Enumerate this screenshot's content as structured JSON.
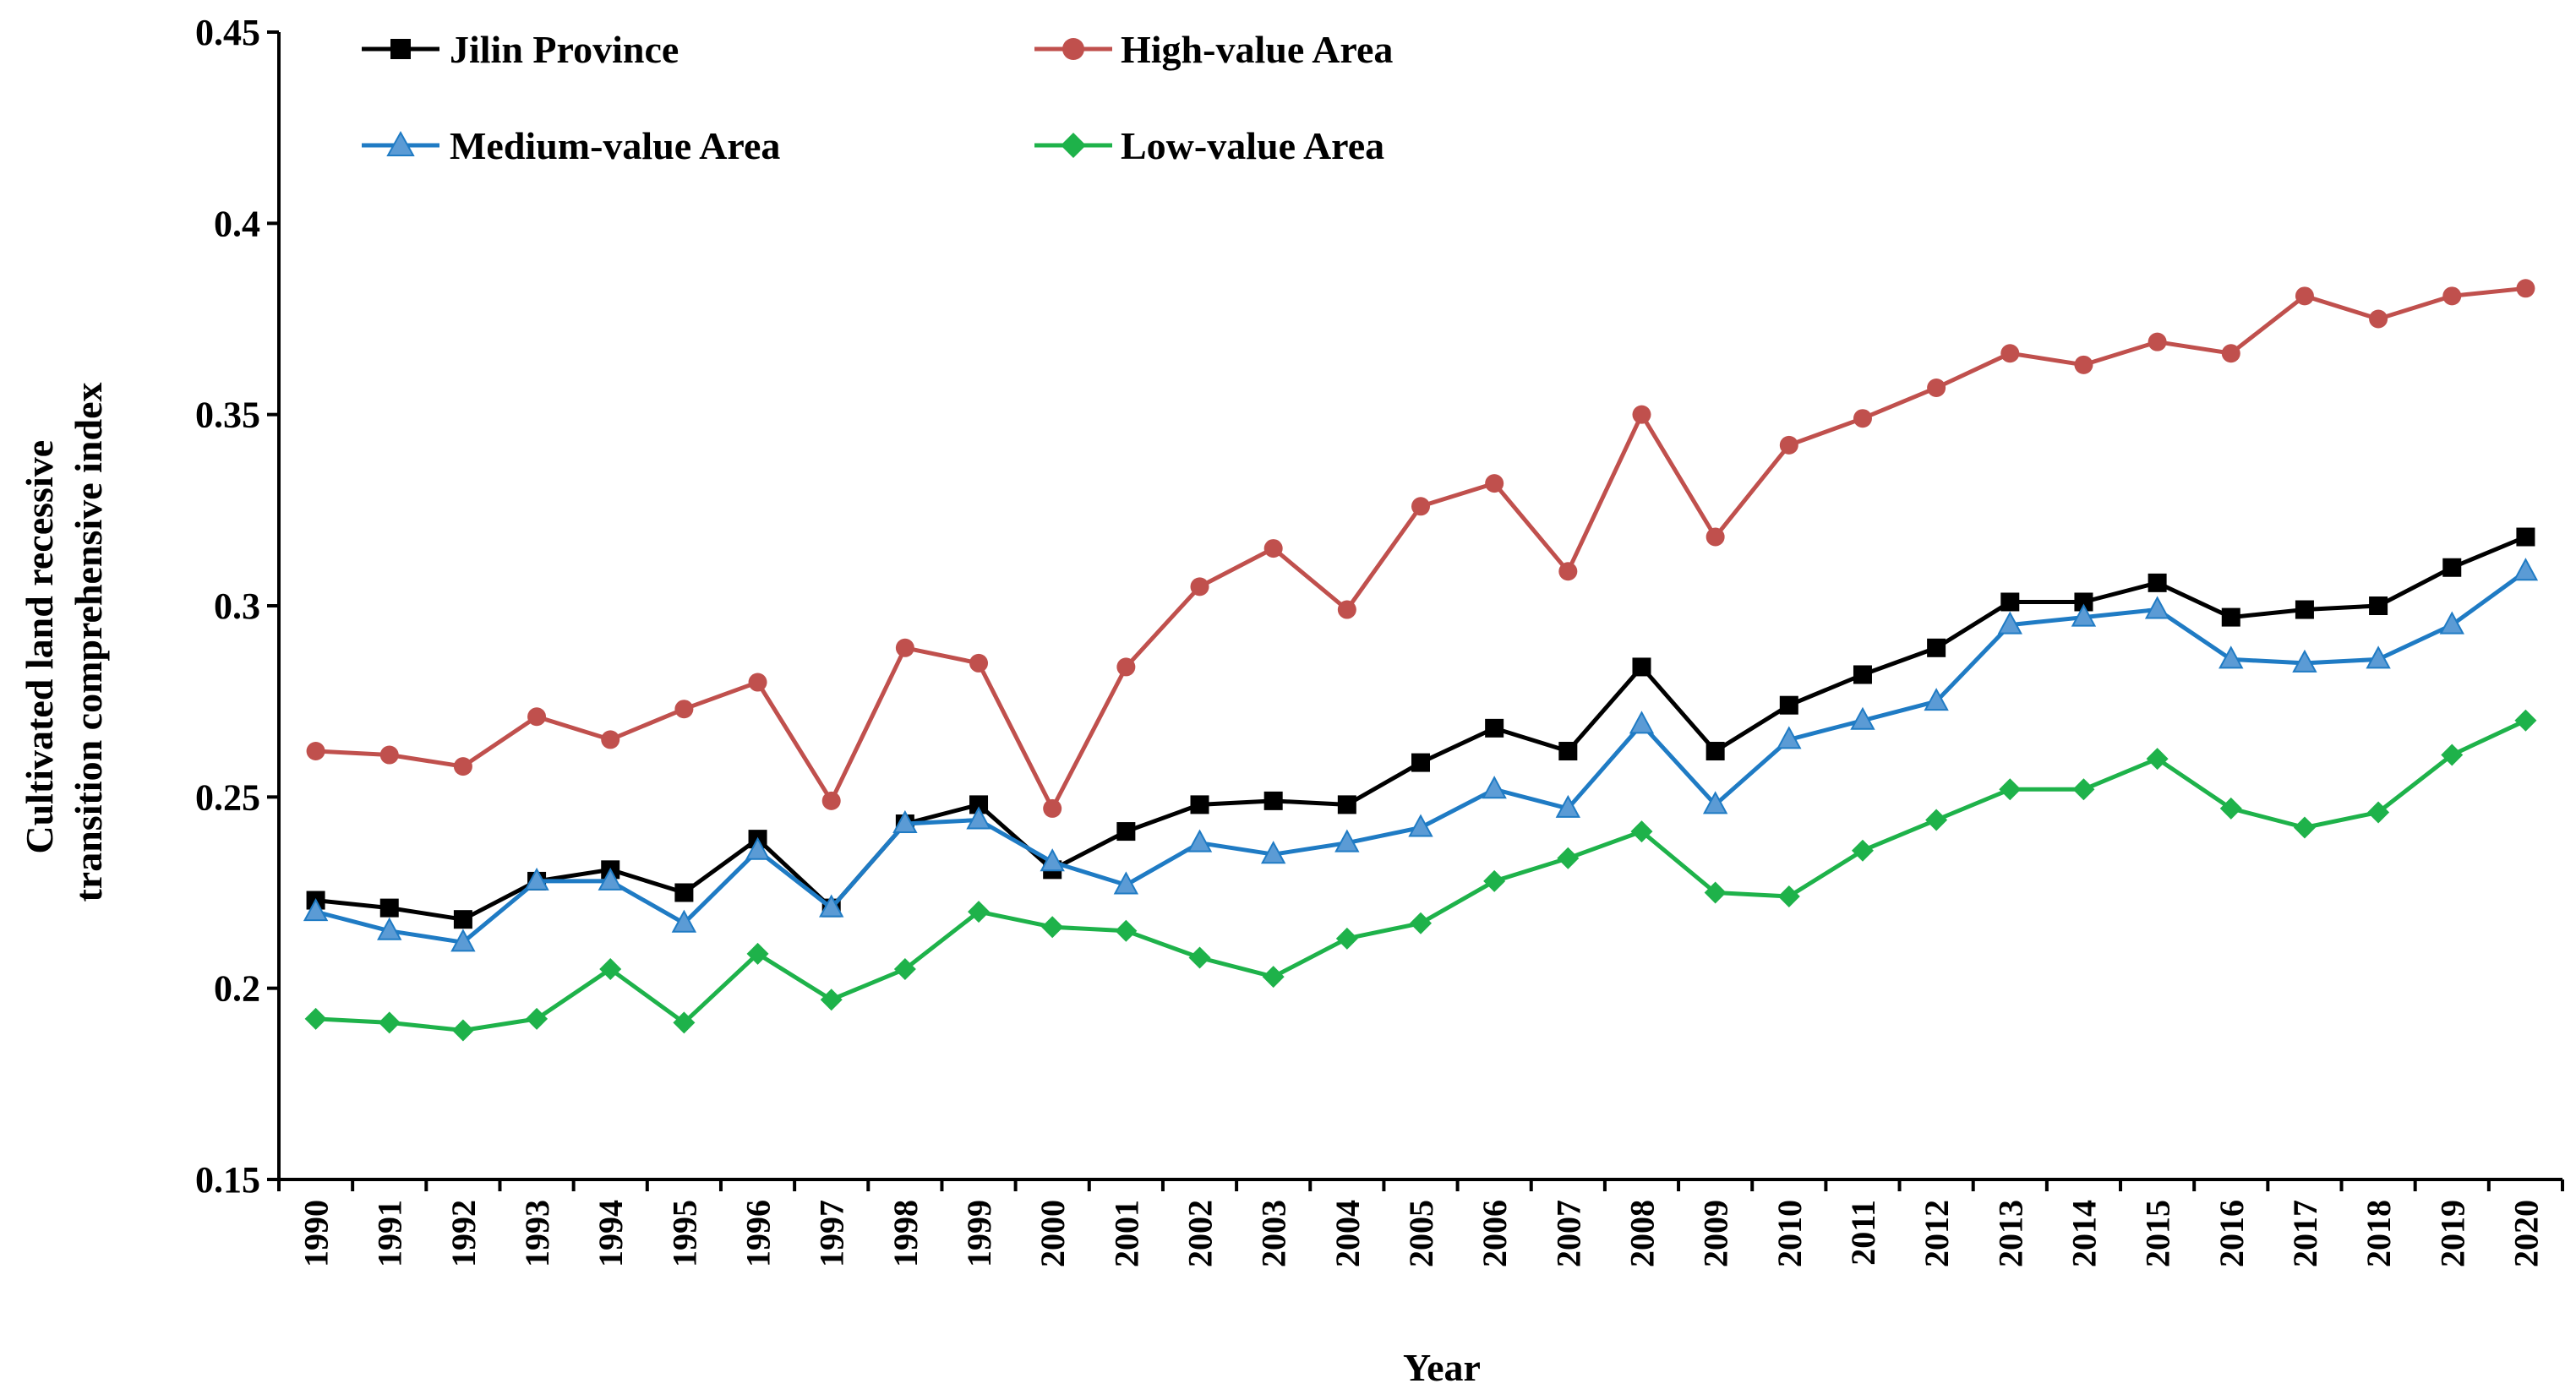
{
  "chart_data": {
    "type": "line",
    "title": "",
    "xlabel": "Year",
    "ylabel": [
      "Cultivated land recessive",
      "transition comprehensive index"
    ],
    "ylim": [
      0.15,
      0.45
    ],
    "yticks": [
      0.15,
      0.2,
      0.25,
      0.3,
      0.35,
      0.4,
      0.45
    ],
    "ytick_labels": [
      "0.15",
      "0.2",
      "0.25",
      "0.3",
      "0.35",
      "0.4",
      "0.45"
    ],
    "grid": false,
    "legend_position": "top-left, two columns",
    "categories": [
      "1990",
      "1991",
      "1992",
      "1993",
      "1994",
      "1995",
      "1996",
      "1997",
      "1998",
      "1999",
      "2000",
      "2001",
      "2002",
      "2003",
      "2004",
      "2005",
      "2006",
      "2007",
      "2008",
      "2009",
      "2010",
      "2011",
      "2012",
      "2013",
      "2014",
      "2015",
      "2016",
      "2017",
      "2018",
      "2019",
      "2020"
    ],
    "series": [
      {
        "name": "Jilin Province",
        "color": "#000000",
        "marker": "square",
        "values": [
          0.223,
          0.221,
          0.218,
          0.228,
          0.231,
          0.225,
          0.239,
          0.221,
          0.243,
          0.248,
          0.231,
          0.241,
          0.248,
          0.249,
          0.248,
          0.259,
          0.268,
          0.262,
          0.284,
          0.262,
          0.274,
          0.282,
          0.289,
          0.301,
          0.301,
          0.306,
          0.297,
          0.299,
          0.3,
          0.31,
          0.318
        ]
      },
      {
        "name": "High-value Area",
        "color": "#c0504d",
        "marker": "circle",
        "values": [
          0.262,
          0.261,
          0.258,
          0.271,
          0.265,
          0.273,
          0.28,
          0.249,
          0.289,
          0.285,
          0.247,
          0.284,
          0.305,
          0.315,
          0.299,
          0.326,
          0.332,
          0.309,
          0.35,
          0.318,
          0.342,
          0.349,
          0.357,
          0.366,
          0.363,
          0.369,
          0.366,
          0.381,
          0.375,
          0.381,
          0.383
        ]
      },
      {
        "name": "Medium-value Area",
        "color": "#1f7bc4",
        "marker": "triangle",
        "values": [
          0.22,
          0.215,
          0.212,
          0.228,
          0.228,
          0.217,
          0.236,
          0.221,
          0.243,
          0.244,
          0.233,
          0.227,
          0.238,
          0.235,
          0.238,
          0.242,
          0.252,
          0.247,
          0.269,
          0.248,
          0.265,
          0.27,
          0.275,
          0.295,
          0.297,
          0.299,
          0.286,
          0.285,
          0.286,
          0.295,
          0.309
        ]
      },
      {
        "name": "Low-value Area",
        "color": "#1eb24a",
        "marker": "diamond",
        "values": [
          0.192,
          0.191,
          0.189,
          0.192,
          0.205,
          0.191,
          0.209,
          0.197,
          0.205,
          0.22,
          0.216,
          0.215,
          0.208,
          0.203,
          0.213,
          0.217,
          0.228,
          0.234,
          0.241,
          0.225,
          0.224,
          0.236,
          0.244,
          0.252,
          0.252,
          0.26,
          0.247,
          0.242,
          0.246,
          0.261,
          0.27
        ]
      }
    ]
  }
}
